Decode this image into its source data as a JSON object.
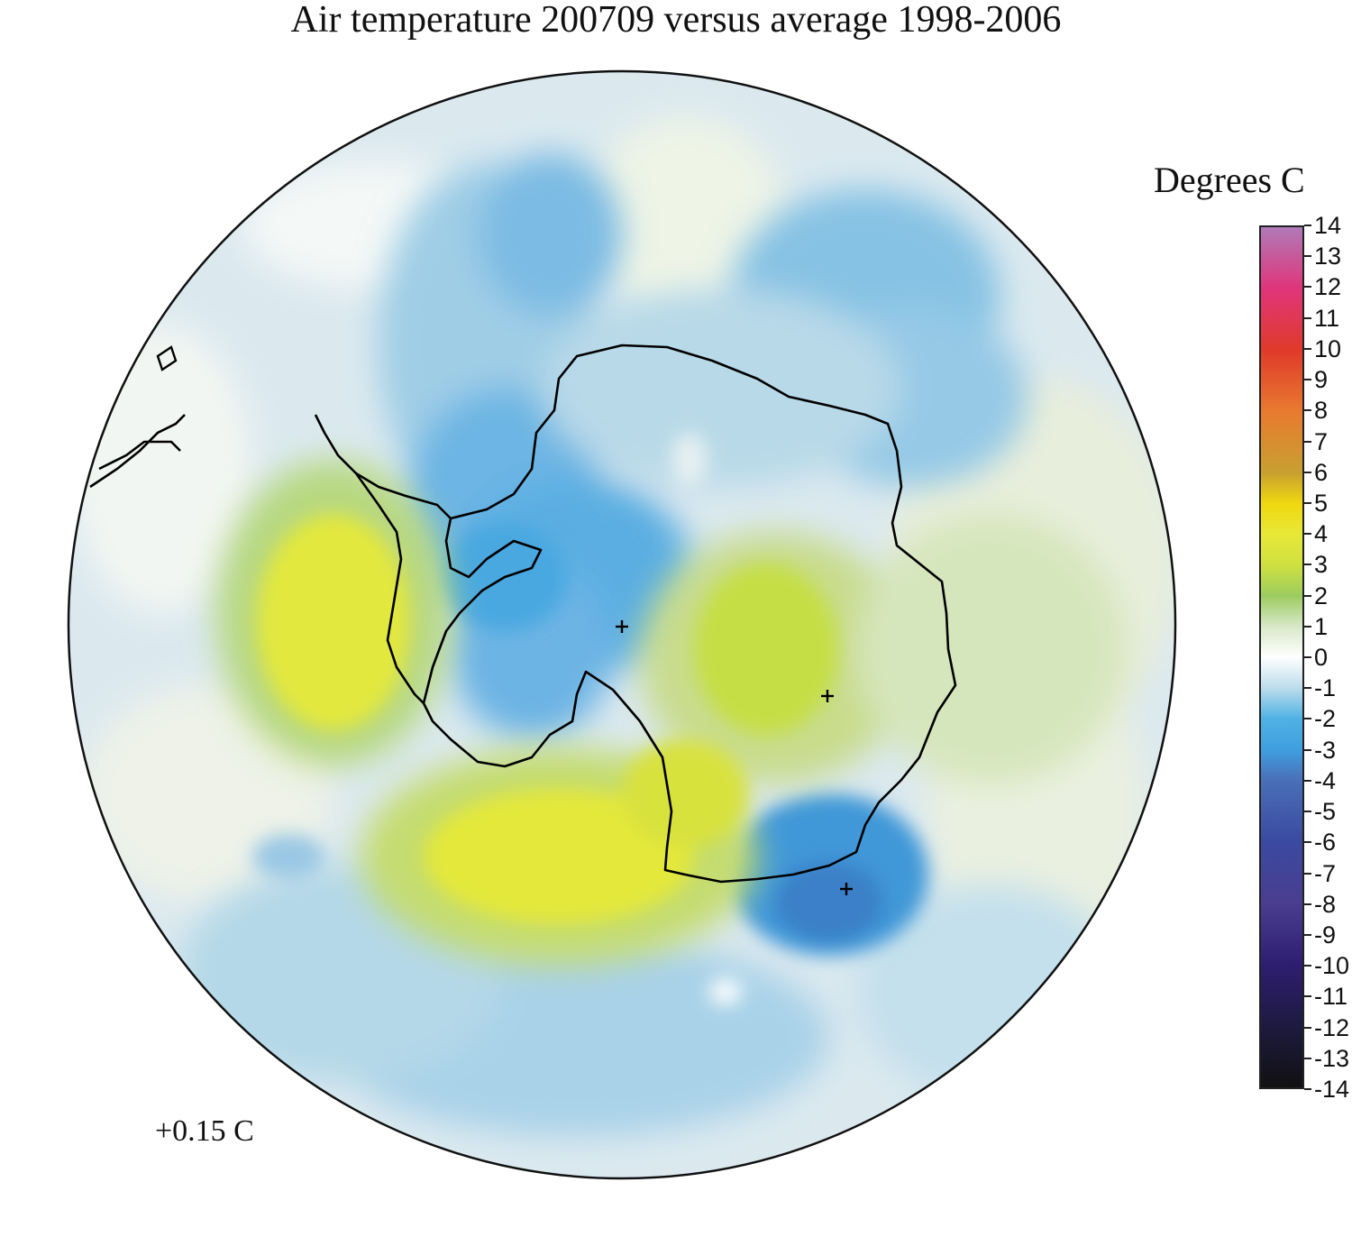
{
  "title": "Air temperature 200709 versus average 1998-2006",
  "legend": {
    "title": "Degrees C",
    "ticks": [
      "14",
      "13",
      "12",
      "11",
      "10",
      "9",
      "8",
      "7",
      "6",
      "5",
      "4",
      "3",
      "2",
      "1",
      "0",
      "-1",
      "-2",
      "-3",
      "-4",
      "-5",
      "-6",
      "-7",
      "-8",
      "-9",
      "-10",
      "-11",
      "-12",
      "-13",
      "-14"
    ],
    "range": [
      -14,
      14
    ],
    "colors": {
      "14": "#b07ab8",
      "12": "#e0357a",
      "10": "#e03a2a",
      "8": "#e87a30",
      "6": "#c8a030",
      "5": "#f0d810",
      "4": "#e8e838",
      "3": "#cfe040",
      "2": "#9ccc60",
      "1": "#d8e8c8",
      "0": "#ffffff",
      "-1": "#bcdcec",
      "-2": "#4fb2e4",
      "-3": "#3f9fdf",
      "-4": "#4a6fb8",
      "-6": "#3a4aa0",
      "-8": "#4a3d90",
      "-10": "#2e1e70",
      "-12": "#1e1a40",
      "-14": "#111111"
    }
  },
  "global_anomaly": "+0.15 C",
  "map": {
    "projection": "south-polar-stereographic",
    "ocean_background": "#d8e8ee",
    "coastline_color": "#000000",
    "grid_markers": "+"
  }
}
